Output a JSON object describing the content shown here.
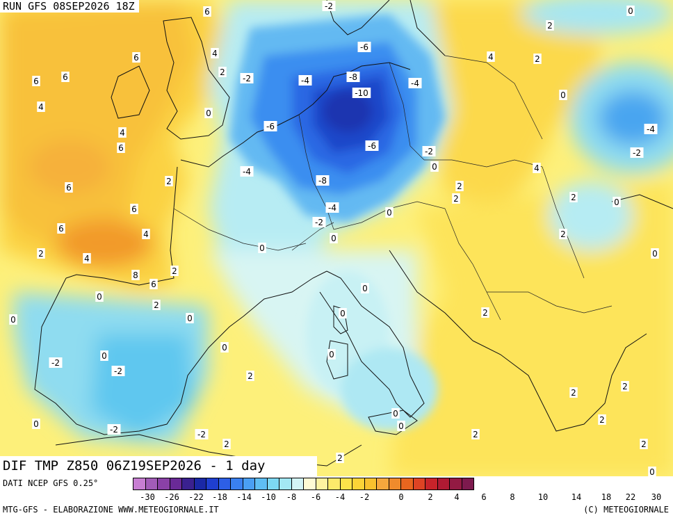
{
  "header": {
    "run_label": "RUN GFS 08SEP2026 18Z",
    "valid_label": "DIF TMP Z850 06Z19SEP2026 - 1 day"
  },
  "footer": {
    "data_source": "DATI NCEP GFS 0.25°",
    "credit_left": "MTG-GFS - ELABORAZIONE WWW.METEOGIORNALE.IT",
    "credit_right": "(C) METEOGIORNALE"
  },
  "legend": {
    "colors": [
      "#c77ed2",
      "#a25cb8",
      "#8a41a7",
      "#6a2a97",
      "#3a2190",
      "#1a28a6",
      "#1f3fd0",
      "#2d5fe6",
      "#3a80ef",
      "#4a9ff3",
      "#5fbef3",
      "#7dd8f2",
      "#a3e8f4",
      "#d3f4f6",
      "#fffbd4",
      "#fdf2a0",
      "#fcea6b",
      "#fde34a",
      "#fbd337",
      "#f8c12e",
      "#f5a73d",
      "#f08b2c",
      "#e8661f",
      "#de4324",
      "#c8232a",
      "#b01a33",
      "#931a43",
      "#7d1a4e"
    ],
    "tick_labels": [
      "-30",
      "-26",
      "-22",
      "-18",
      "-14",
      "-10",
      "-8",
      "-6",
      "-4",
      "-2",
      "0",
      "2",
      "4",
      "6",
      "8",
      "10",
      "14",
      "18",
      "22",
      "30"
    ]
  },
  "isoline_labels": [
    "6",
    "6",
    "4",
    "2",
    "-2",
    "-4",
    "-6",
    "-8",
    "-10",
    "-6",
    "-4",
    "-6",
    "-4",
    "-8",
    "-4",
    "-2",
    "0",
    "-2",
    "0",
    "6",
    "4",
    "6",
    "4",
    "6",
    "6",
    "2",
    "6",
    "4",
    "2",
    "4",
    "8",
    "6",
    "2",
    "0",
    "0",
    "0",
    "-2",
    "0",
    "-2",
    "0",
    "0",
    "0",
    "0",
    "2",
    "-2",
    "2",
    "0",
    "0",
    "2",
    "2",
    "4",
    "2",
    "2",
    "2",
    "0",
    "4",
    "0",
    "-4",
    "-2",
    "2",
    "2",
    "2",
    "2",
    "0",
    "0",
    "2",
    "0"
  ]
}
